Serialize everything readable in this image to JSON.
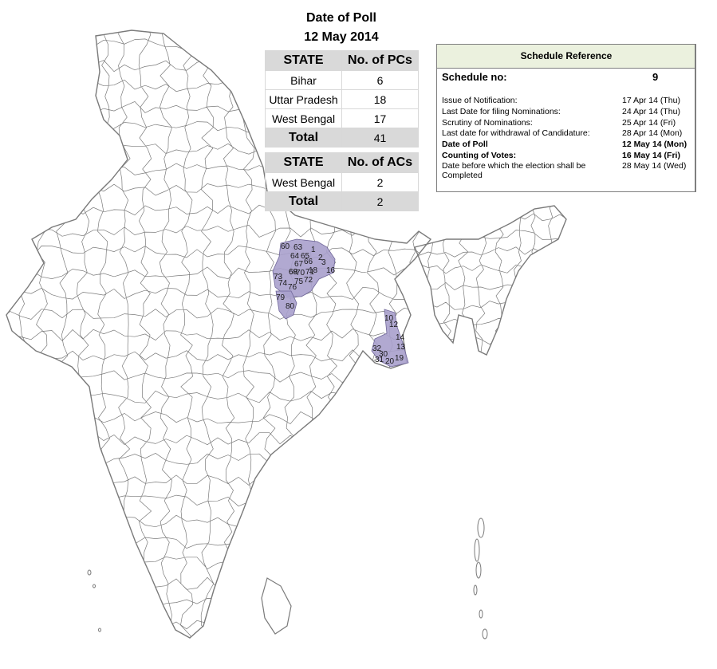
{
  "poll": {
    "title": "Date of Poll",
    "date": "12 May 2014"
  },
  "pc_table": {
    "headers": [
      "STATE",
      "No. of PCs"
    ],
    "rows": [
      {
        "state": "Bihar",
        "count": "6"
      },
      {
        "state": "Uttar Pradesh",
        "count": "18"
      },
      {
        "state": "West Bengal",
        "count": "17"
      }
    ],
    "total_label": "Total",
    "total_value": "41"
  },
  "ac_table": {
    "headers": [
      "STATE",
      "No. of ACs"
    ],
    "rows": [
      {
        "state": "West Bengal",
        "count": "2"
      }
    ],
    "total_label": "Total",
    "total_value": "2"
  },
  "schedule": {
    "title": "Schedule Reference",
    "no_label": "Schedule no:",
    "no_value": "9",
    "rows": [
      {
        "label": "Issue of Notification:",
        "value": "17 Apr 14 (Thu)",
        "bold": false
      },
      {
        "label": "Last Date for filing Nominations:",
        "value": "24 Apr 14 (Thu)",
        "bold": false
      },
      {
        "label": "Scrutiny of Nominations:",
        "value": "25 Apr 14 (Fri)",
        "bold": false
      },
      {
        "label": "Last date for withdrawal of Candidature:",
        "value": "28 Apr 14 (Mon)",
        "bold": false
      },
      {
        "label": "Date of Poll",
        "value": "12 May 14 (Mon)",
        "bold": true
      },
      {
        "label": "Counting of Votes:",
        "value": "16 May 14 (Fri)",
        "bold": true
      },
      {
        "label": "Date before which the election shall be Completed",
        "value": "28 May 14 (Wed)",
        "bold": false
      }
    ]
  },
  "map": {
    "outline_color": "#7a7a7a",
    "highlight_color": "#a9a0cc",
    "constituency_labels": [
      "60",
      "63",
      "1",
      "64",
      "65",
      "2",
      "66",
      "67",
      "3",
      "68",
      "18",
      "16",
      "69",
      "70",
      "71",
      "73",
      "75",
      "72",
      "74",
      "76",
      "79",
      "80",
      "10",
      "12",
      "14",
      "32",
      "30",
      "13",
      "31",
      "20",
      "19"
    ]
  }
}
